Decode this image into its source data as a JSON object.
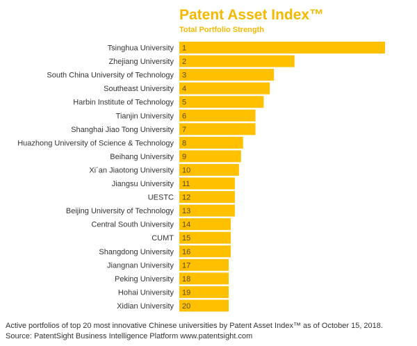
{
  "chart_data": {
    "type": "bar",
    "orientation": "horizontal",
    "title": "Patent Asset Index™",
    "subtitle": "Total Portfolio Strength",
    "categories": [
      "Tsinghua University",
      "Zhejiang University",
      "South China University of Technology",
      "Southeast University",
      "Harbin Institute of Technology",
      "Tianjin University",
      "Shanghai Jiao Tong University",
      "Huazhong University of Science & Technology",
      "Beihang University",
      "Xi´an Jiaotong University",
      "Jiangsu University",
      "UESTC",
      "Beijing University of Technology",
      "Central South University",
      "CUMT",
      "Shangdong University",
      "Jiangnan University",
      "Peking University",
      "Hohai University",
      "Xidian University"
    ],
    "ranks": [
      "1",
      "2",
      "3",
      "4",
      "5",
      "6",
      "7",
      "8",
      "9",
      "10",
      "11",
      "12",
      "13",
      "14",
      "15",
      "16",
      "17",
      "18",
      "19",
      "20"
    ],
    "values": [
      100,
      56,
      46,
      44,
      41,
      37,
      37,
      31,
      30,
      29,
      27,
      27,
      27,
      25,
      25,
      25,
      24,
      24,
      24,
      24
    ],
    "xlim": [
      0,
      100
    ],
    "bar_color": "#ffc000",
    "grid": false,
    "legend": "none"
  },
  "footer": {
    "line1": "Active portfolios of top 20 most innovative Chinese universities by Patent Asset Index™ as of October 15, 2018.",
    "line2": "Source: PatentSight Business Intelligence Platform www.patentsight.com"
  }
}
